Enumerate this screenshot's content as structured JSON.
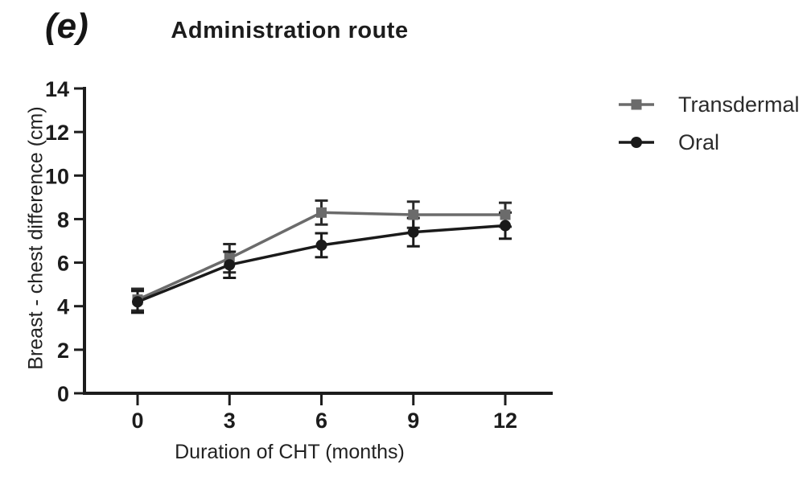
{
  "figure": {
    "panel_label": "(e)",
    "background": "#ffffff"
  },
  "chart_data": {
    "type": "line",
    "title": "Administration route",
    "xlabel": "Duration of CHT (months)",
    "ylabel": "Breast - chest difference (cm)",
    "x": [
      0,
      3,
      6,
      9,
      12
    ],
    "xticks": [
      0,
      3,
      6,
      9,
      12
    ],
    "yticks": [
      0,
      2,
      4,
      6,
      8,
      10,
      12,
      14
    ],
    "xlim": [
      0,
      12
    ],
    "ylim": [
      0,
      14
    ],
    "grid": false,
    "legend_position": "right-outside",
    "axis_color": "#1c1c1c",
    "series": [
      {
        "name": "Transdermal",
        "marker": "square",
        "color": "#6b6b6b",
        "error_color": "#2a2a2a",
        "values": [
          4.3,
          6.2,
          8.3,
          8.2,
          8.2
        ],
        "errors": [
          0.5,
          0.65,
          0.55,
          0.6,
          0.55
        ]
      },
      {
        "name": "Oral",
        "marker": "circle",
        "color": "#1a1a1a",
        "error_color": "#1a1a1a",
        "values": [
          4.2,
          5.9,
          6.8,
          7.4,
          7.7
        ],
        "errors": [
          0.5,
          0.6,
          0.55,
          0.65,
          0.6
        ]
      }
    ]
  }
}
